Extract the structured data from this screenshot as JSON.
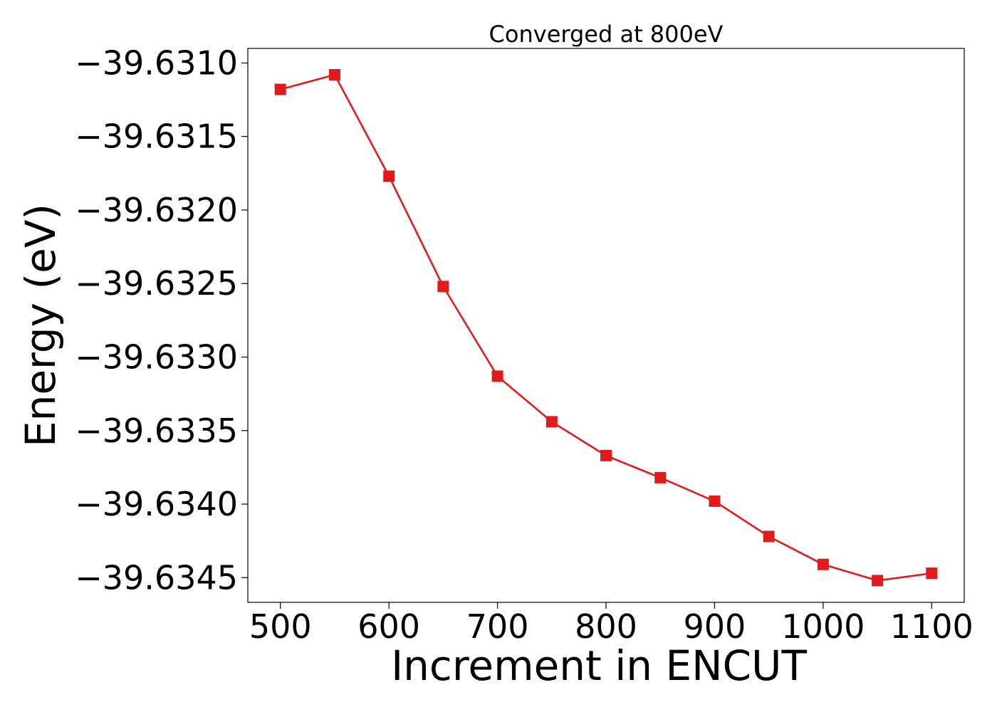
{
  "chart_data": {
    "type": "line",
    "title": "Converged at 800eV",
    "xlabel": "Increment in ENCUT",
    "ylabel": "Energy (eV)",
    "x": [
      500,
      550,
      600,
      650,
      700,
      750,
      800,
      850,
      900,
      950,
      1000,
      1050,
      1100
    ],
    "series": [
      {
        "values": [
          -39.63118,
          -39.63108,
          -39.63177,
          -39.63252,
          -39.63313,
          -39.63344,
          -39.63367,
          -39.63382,
          -39.63398,
          -39.63422,
          -39.63441,
          -39.63452,
          -39.63447
        ],
        "color": "#e31a1c",
        "marker": "square"
      }
    ],
    "xlim": [
      470,
      1130
    ],
    "ylim": [
      -39.634668,
      -39.630901
    ],
    "xticks": [
      500,
      600,
      700,
      800,
      900,
      1000,
      1100
    ],
    "xtick_labels": [
      "500",
      "600",
      "700",
      "800",
      "900",
      "1000",
      "1100"
    ],
    "yticks": [
      -39.631,
      -39.6315,
      -39.632,
      -39.6325,
      -39.633,
      -39.6335,
      -39.634,
      -39.6345
    ],
    "ytick_labels": [
      "−39.6310",
      "−39.6315",
      "−39.6320",
      "−39.6325",
      "−39.6330",
      "−39.6335",
      "−39.6340",
      "−39.6345"
    ],
    "grid": false,
    "legend": false
  }
}
